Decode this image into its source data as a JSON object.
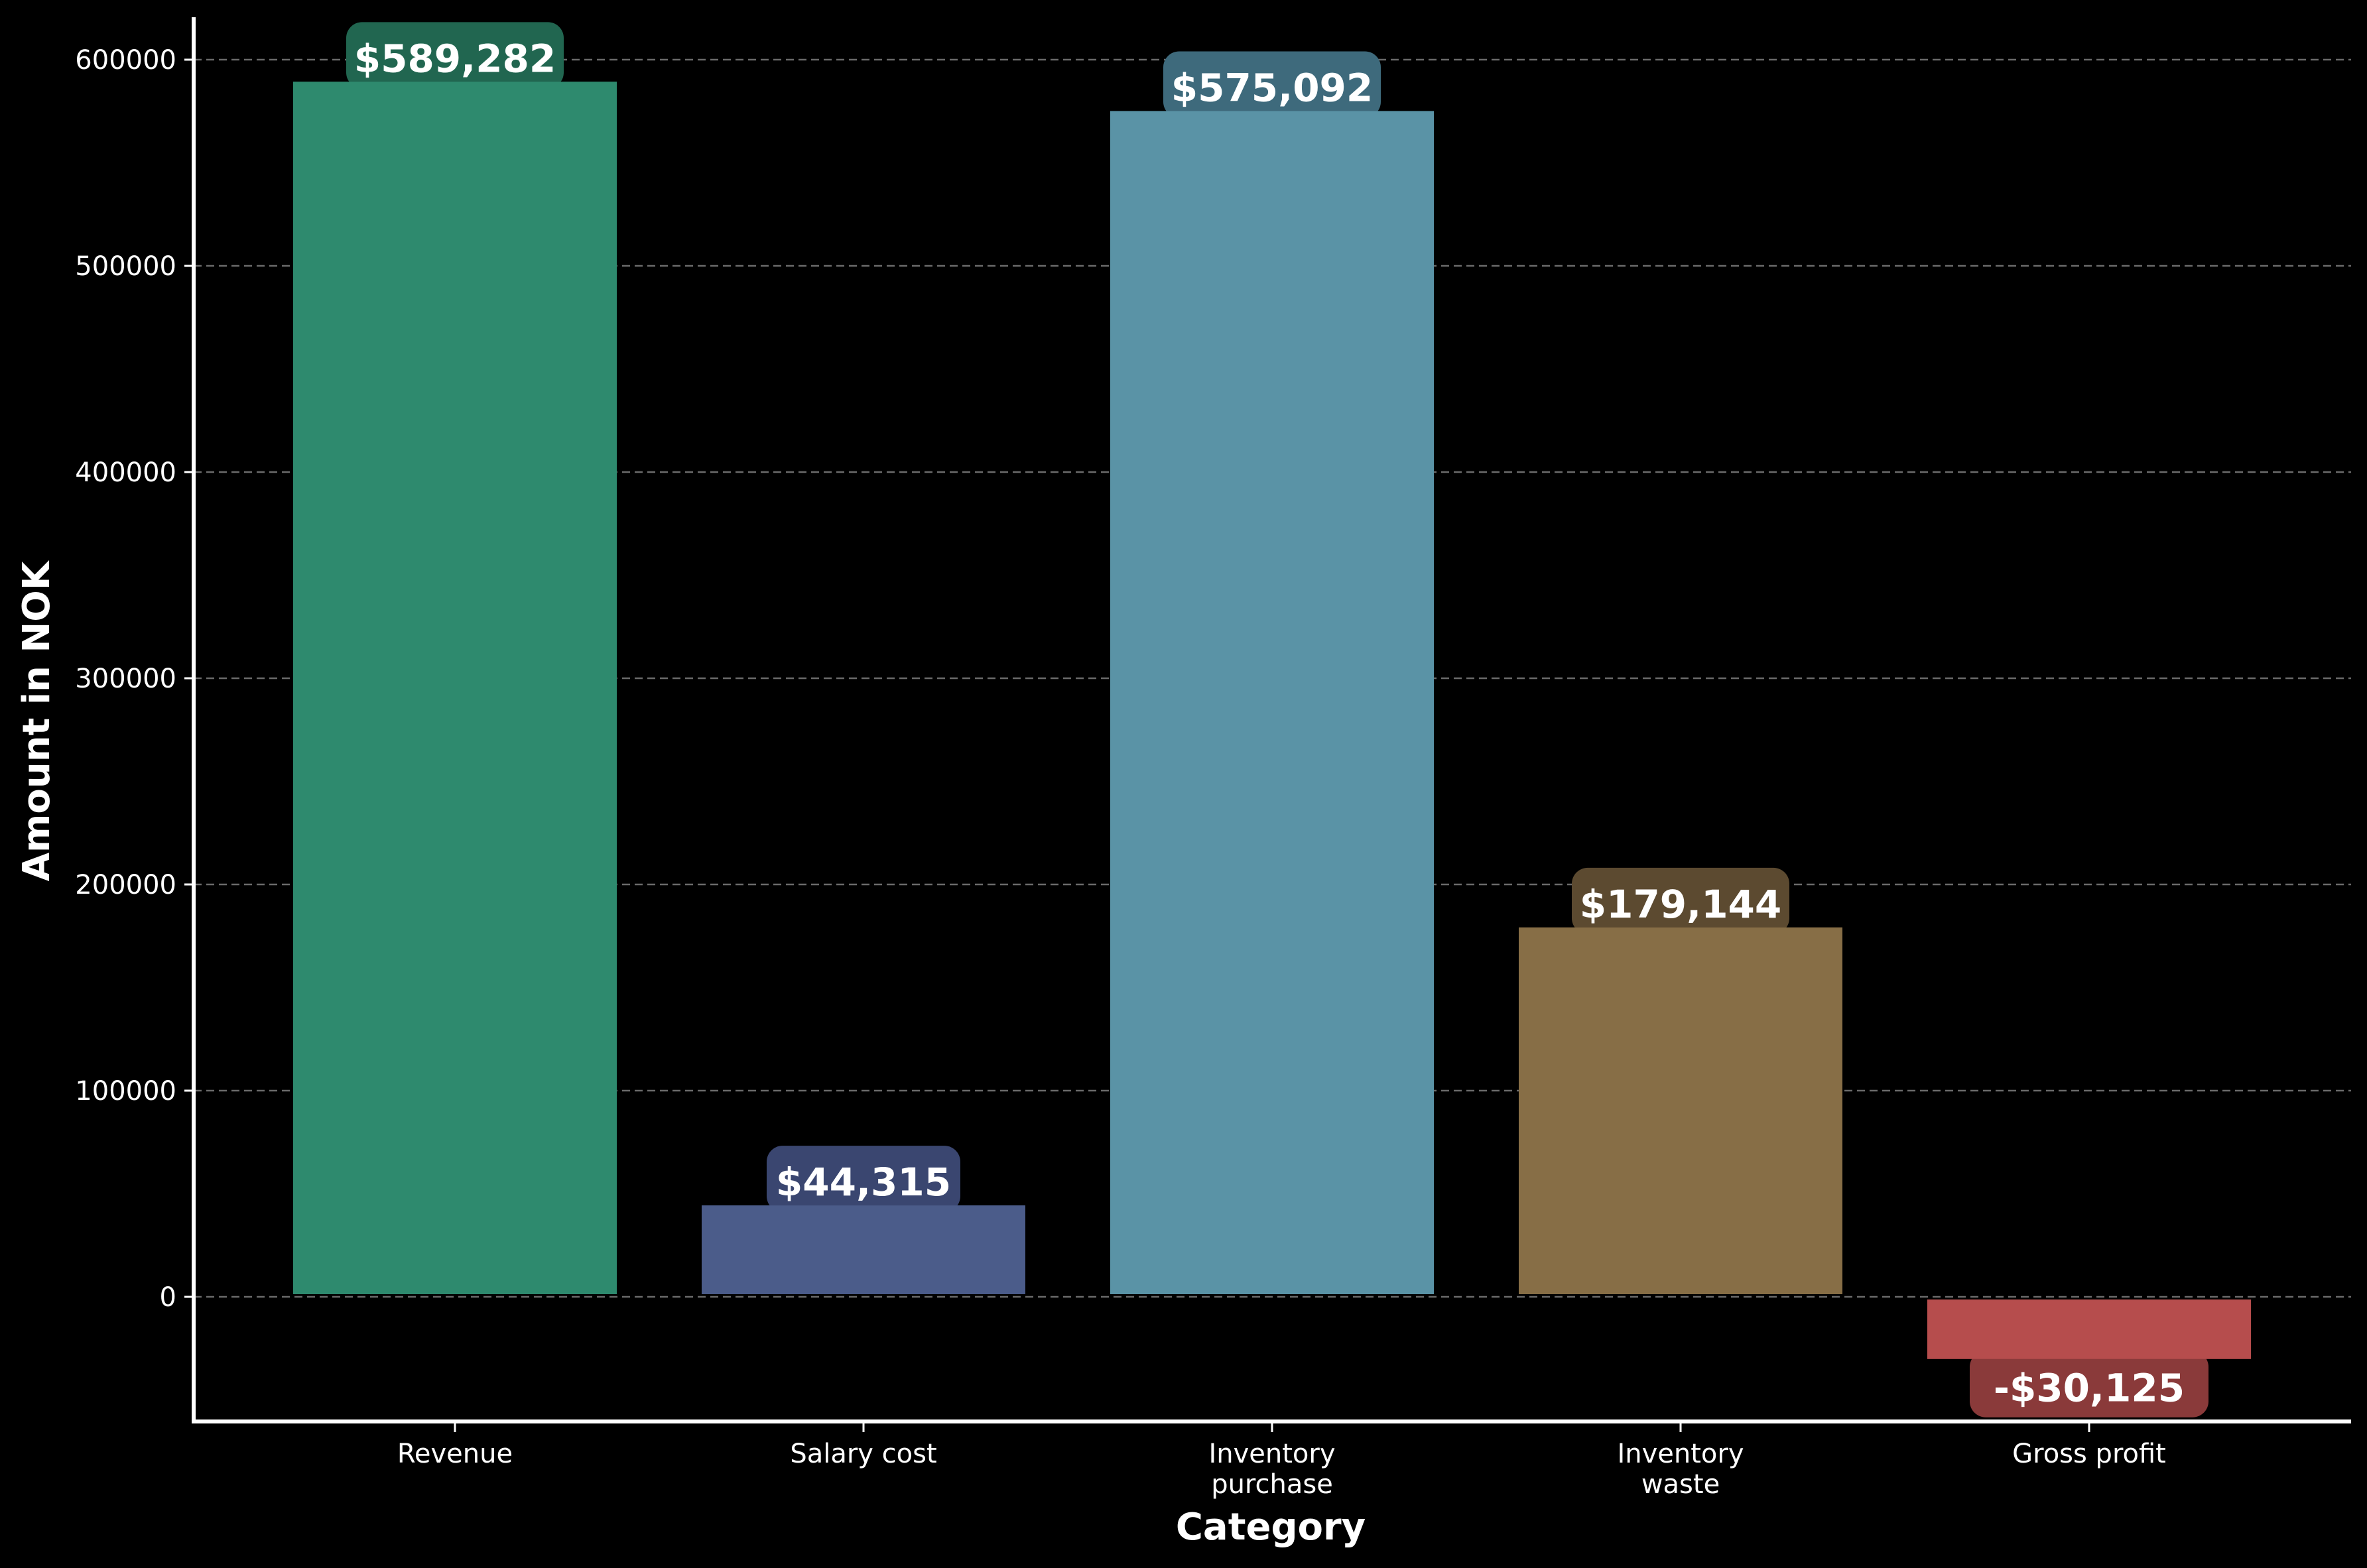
{
  "chart_data": {
    "type": "bar",
    "xlabel": "Category",
    "ylabel": "Amount in NOK",
    "categories": [
      [
        "Revenue"
      ],
      [
        "Salary cost"
      ],
      [
        "Inventory",
        "purchase"
      ],
      [
        "Inventory",
        "waste"
      ],
      [
        "Gross profit"
      ]
    ],
    "values": [
      589282,
      44315,
      575092,
      179144,
      -30125
    ],
    "value_labels": [
      "$589,282",
      "$44,315",
      "$575,092",
      "$179,144",
      "-$30,125"
    ],
    "bar_colors": [
      "#2e8a6e",
      "#4b5c8a",
      "#5a93a6",
      "#876e46",
      "#b64d4d"
    ],
    "label_colors": [
      "#216650",
      "#3a4670",
      "#3e6a7c",
      "#5c4a30",
      "#8a3a3a"
    ],
    "yticks": [
      0,
      100000,
      200000,
      300000,
      400000,
      500000,
      600000
    ],
    "ylim": [
      -60000,
      622000
    ],
    "grid": true,
    "grid_axis": "y",
    "background": "#000000",
    "text_color": "#ffffff"
  }
}
